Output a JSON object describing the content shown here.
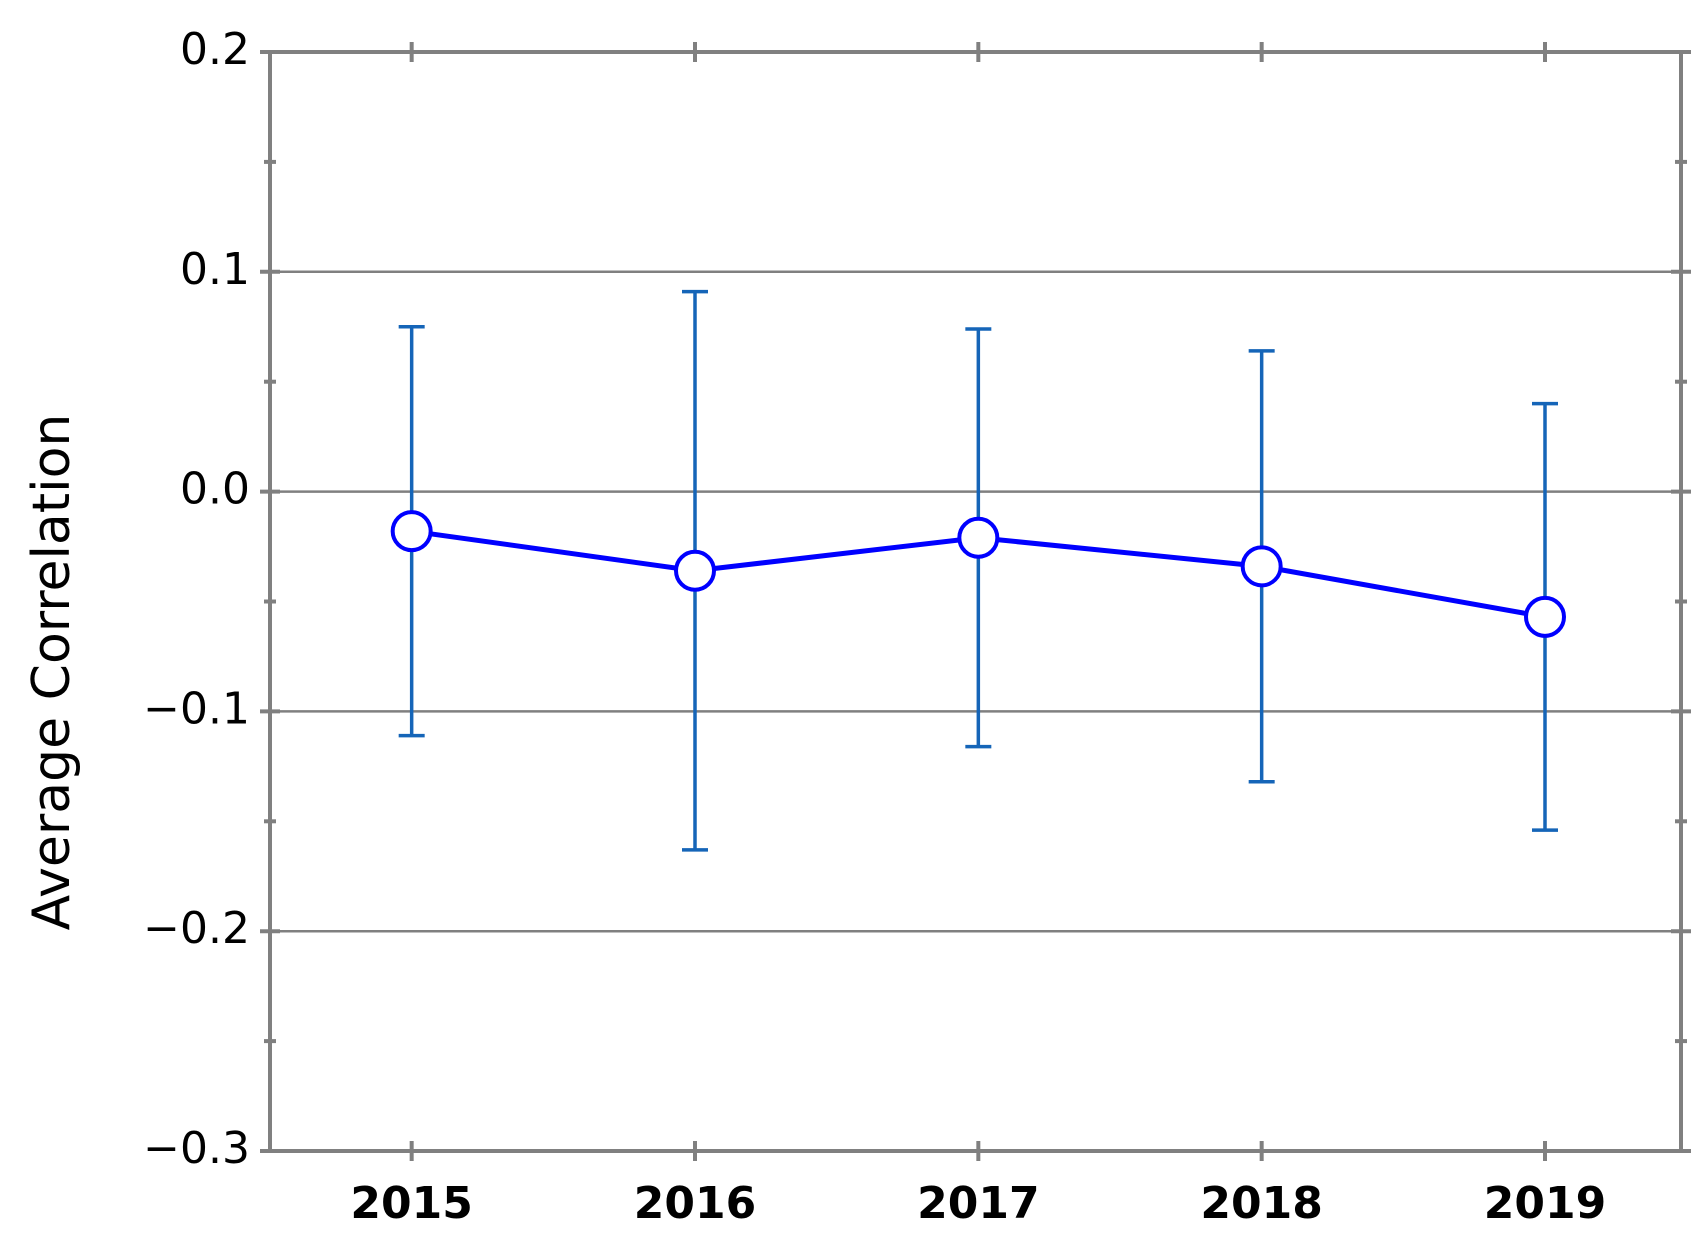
{
  "chart_data": {
    "type": "line",
    "y_label": "Average Correlation",
    "x": [
      2015,
      2016,
      2017,
      2018,
      2019
    ],
    "series": [
      {
        "color": "#0000ff",
        "error_color": "#1565b8",
        "values": [
          -0.018,
          -0.036,
          -0.021,
          -0.034,
          -0.057
        ],
        "errors": [
          0.093,
          0.127,
          0.095,
          0.098,
          0.097
        ]
      }
    ],
    "xlim": [
      2014.5,
      2019.48
    ],
    "xticks": [
      2015,
      2016,
      2017,
      2018,
      2019
    ],
    "ylim": [
      -0.3,
      0.2
    ],
    "yticks": [
      {
        "value": -0.3,
        "label": "−0.3"
      },
      {
        "value": -0.2,
        "label": "−0.2"
      },
      {
        "value": -0.1,
        "label": "−0.1"
      },
      {
        "value": 0,
        "label": "0.0"
      },
      0.1,
      0.2
    ],
    "minor_yticks": [
      -0.25,
      -0.15,
      -0.05,
      0.05,
      0.15
    ],
    "grid": true
  }
}
